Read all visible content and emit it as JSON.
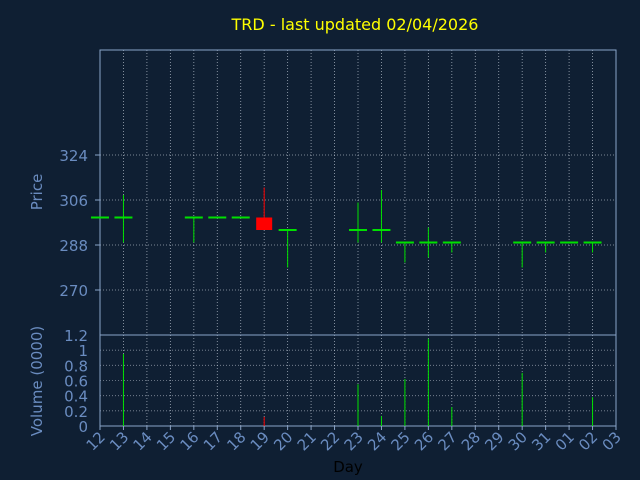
{
  "chart_data": {
    "type": "candlestick",
    "title": "TRD - last updated 02/04/2026",
    "xlabel": "Day",
    "price_panel": {
      "ylabel": "Price",
      "ylim": [
        252,
        366
      ],
      "yticks": [
        270,
        288,
        306,
        324
      ],
      "grid": true
    },
    "volume_panel": {
      "ylabel": "Volume (0000)",
      "ylim": [
        0,
        1.2
      ],
      "yticks": [
        0,
        0.2,
        0.4,
        0.6,
        0.8,
        1,
        1.2
      ],
      "grid": true
    },
    "x_ticks": [
      "12",
      "13",
      "14",
      "15",
      "16",
      "17",
      "18",
      "19",
      "20",
      "21",
      "22",
      "23",
      "24",
      "25",
      "26",
      "27",
      "28",
      "29",
      "30",
      "31",
      "01",
      "02",
      "03"
    ],
    "candles": [
      {
        "i": 0,
        "o": 299,
        "h": 299,
        "l": 299,
        "c": 299,
        "v": 0
      },
      {
        "i": 1,
        "o": 299,
        "h": 308,
        "l": 289,
        "c": 299,
        "v": 0.95
      },
      {
        "i": 4,
        "o": 299,
        "h": 299,
        "l": 289,
        "c": 299,
        "v": 0
      },
      {
        "i": 5,
        "o": 299,
        "h": 299,
        "l": 299,
        "c": 299,
        "v": 0
      },
      {
        "i": 6,
        "o": 299,
        "h": 299,
        "l": 299,
        "c": 299,
        "v": 0
      },
      {
        "i": 7,
        "o": 299,
        "h": 311,
        "l": 294,
        "c": 294,
        "v": 0.12
      },
      {
        "i": 8,
        "o": 294,
        "h": 294,
        "l": 279,
        "c": 294,
        "v": 0
      },
      {
        "i": 11,
        "o": 294,
        "h": 305,
        "l": 289,
        "c": 294,
        "v": 0.55
      },
      {
        "i": 12,
        "o": 294,
        "h": 310,
        "l": 289,
        "c": 294,
        "v": 0.13
      },
      {
        "i": 13,
        "o": 289,
        "h": 289,
        "l": 281,
        "c": 289,
        "v": 0.62
      },
      {
        "i": 14,
        "o": 289,
        "h": 295,
        "l": 283,
        "c": 289,
        "v": 1.15
      },
      {
        "i": 15,
        "o": 289,
        "h": 289,
        "l": 285,
        "c": 289,
        "v": 0.25
      },
      {
        "i": 18,
        "o": 289,
        "h": 289,
        "l": 279,
        "c": 289,
        "v": 0.7
      },
      {
        "i": 19,
        "o": 289,
        "h": 289,
        "l": 285,
        "c": 289,
        "v": 0
      },
      {
        "i": 20,
        "o": 289,
        "h": 289,
        "l": 289,
        "c": 289,
        "v": 0
      },
      {
        "i": 21,
        "o": 289,
        "h": 289,
        "l": 285,
        "c": 289,
        "v": 0.38
      }
    ],
    "colors": {
      "background": "#0f1f33",
      "frame": "#8aa4c8",
      "grid": "#cfd8e3",
      "title": "#ffff00",
      "axis_text": "#6a8cc0",
      "up": "#00e000",
      "down": "#ff0000"
    }
  }
}
